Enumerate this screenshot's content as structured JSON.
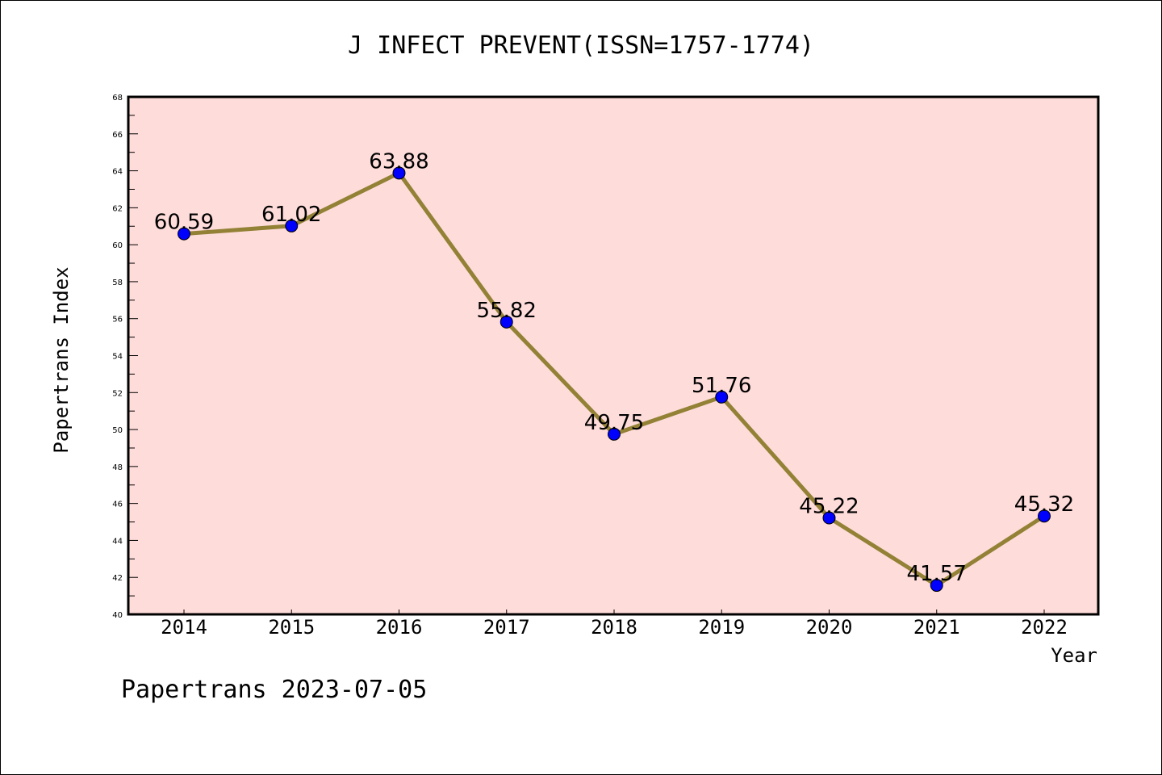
{
  "chart_data": {
    "type": "line",
    "title": "J INFECT PREVENT(ISSN=1757-1774)",
    "xlabel": "Year",
    "ylabel": "Papertrans Index",
    "categories": [
      "2014",
      "2015",
      "2016",
      "2017",
      "2018",
      "2019",
      "2020",
      "2021",
      "2022"
    ],
    "values": [
      60.59,
      61.02,
      63.88,
      55.82,
      49.75,
      51.76,
      45.22,
      41.57,
      45.32
    ],
    "value_labels": [
      "60.59",
      "61.02",
      "63.88",
      "55.82",
      "49.75",
      "51.76",
      "45.22",
      "41.57",
      "45.32"
    ],
    "ylim": [
      40,
      68
    ],
    "yticks": [
      "40",
      "42",
      "44",
      "46",
      "48",
      "50",
      "52",
      "54",
      "56",
      "58",
      "60",
      "62",
      "64",
      "66",
      "68"
    ],
    "grid": false,
    "legend": "none",
    "colors": {
      "line": "#938136",
      "marker": "#0000ff",
      "plot_background": "#fedcda",
      "axis": "#000000"
    }
  },
  "footer": {
    "watermark": "Papertrans 2023-07-05"
  }
}
